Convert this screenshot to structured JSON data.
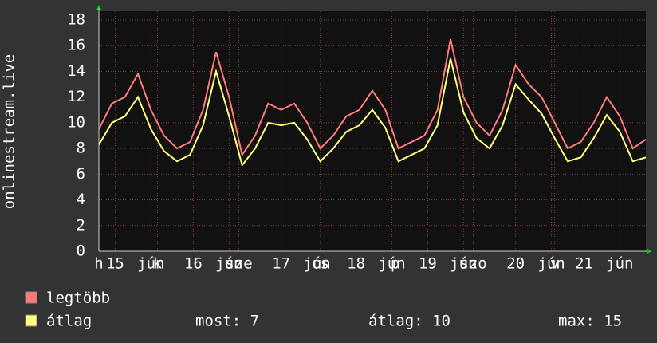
{
  "chart_data": {
    "type": "line",
    "ylabel": "onlinestream.live",
    "x": [
      0,
      4,
      8,
      12,
      16,
      20,
      24,
      28,
      32,
      36,
      40,
      44,
      48,
      52,
      56,
      60,
      64,
      68,
      72,
      76,
      80,
      84,
      88,
      92,
      96,
      100,
      104,
      108,
      112,
      116,
      120,
      124,
      128,
      132,
      136,
      140,
      144,
      148,
      152,
      156,
      160,
      164,
      168
    ],
    "series": [
      {
        "name": "legtöbb",
        "color": "#ff7a7a",
        "values": [
          9.5,
          11.5,
          12,
          13.8,
          11,
          9,
          8,
          8.5,
          11,
          15.5,
          12,
          7.5,
          9,
          11.5,
          11,
          11.5,
          10,
          8,
          9,
          10.5,
          11,
          12.5,
          11,
          8,
          8.5,
          9,
          11,
          16.5,
          12,
          10,
          9,
          11,
          14.5,
          13,
          12,
          10,
          8,
          8.5,
          10,
          12,
          10.5,
          8,
          8.7
        ]
      },
      {
        "name": "átlag",
        "color": "#ffff80",
        "values": [
          8.3,
          10,
          10.5,
          12,
          9.5,
          7.8,
          7,
          7.5,
          9.8,
          14,
          10.5,
          6.7,
          8,
          10,
          9.8,
          10,
          8.7,
          7,
          8,
          9.3,
          9.8,
          11,
          9.6,
          7,
          7.5,
          8,
          9.8,
          15,
          10.8,
          8.8,
          8,
          9.8,
          13,
          11.8,
          10.7,
          8.8,
          7,
          7.3,
          8.8,
          10.6,
          9.3,
          7,
          7.3
        ]
      }
    ],
    "xlim": [
      0,
      168
    ],
    "xticks": [
      {
        "value": 0,
        "label": "h"
      },
      {
        "value": 5,
        "label": "15"
      },
      {
        "value": 16,
        "label": "jún"
      },
      {
        "value": 18,
        "label": "k"
      },
      {
        "value": 29,
        "label": "16"
      },
      {
        "value": 40,
        "label": "jún"
      },
      {
        "value": 43,
        "label": "sze"
      },
      {
        "value": 56,
        "label": "17"
      },
      {
        "value": 67,
        "label": "jún"
      },
      {
        "value": 68,
        "label": "cs"
      },
      {
        "value": 79,
        "label": "18"
      },
      {
        "value": 90,
        "label": "jún"
      },
      {
        "value": 91,
        "label": "p"
      },
      {
        "value": 101,
        "label": "19"
      },
      {
        "value": 112,
        "label": "jún"
      },
      {
        "value": 115,
        "label": "szo"
      },
      {
        "value": 128,
        "label": "20"
      },
      {
        "value": 139,
        "label": "jún"
      },
      {
        "value": 140,
        "label": "v"
      },
      {
        "value": 149,
        "label": "21"
      },
      {
        "value": 160,
        "label": "jún"
      }
    ],
    "ylim": [
      0,
      18
    ],
    "yticks": [
      0,
      2,
      4,
      6,
      8,
      10,
      12,
      14,
      16,
      18
    ],
    "grid": true,
    "stats": [
      "most: 7",
      "átlag: 10",
      "max: 15"
    ]
  }
}
